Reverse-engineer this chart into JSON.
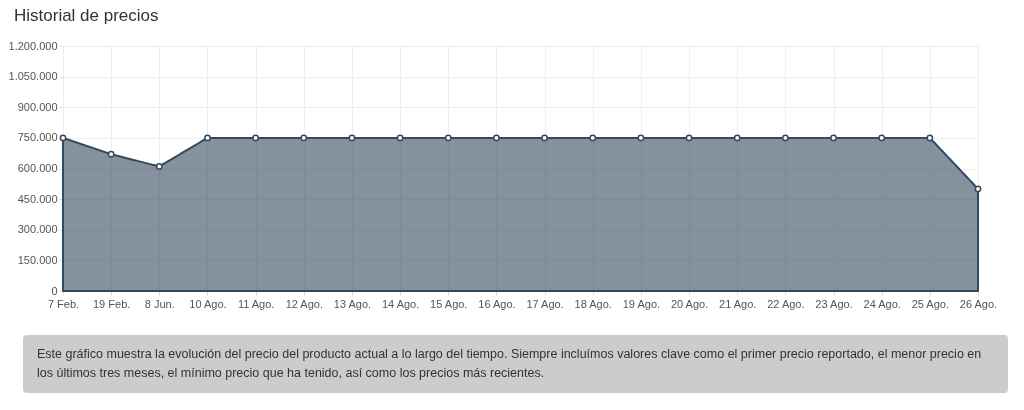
{
  "chart_data": {
    "type": "area",
    "title": "Historial de precios",
    "categories": [
      "7 Feb.",
      "19 Feb.",
      "8 Jun.",
      "10 Ago.",
      "11 Ago.",
      "12 Ago.",
      "13 Ago.",
      "14 Ago.",
      "15 Ago.",
      "16 Ago.",
      "17 Ago.",
      "18 Ago.",
      "19 Ago.",
      "20 Ago.",
      "21 Ago.",
      "22 Ago.",
      "23 Ago.",
      "24 Ago.",
      "25 Ago.",
      "26 Ago."
    ],
    "series": [
      {
        "color": "#34495e",
        "values": [
          750000,
          670000,
          610000,
          750000,
          750000,
          750000,
          750000,
          750000,
          750000,
          750000,
          750000,
          750000,
          750000,
          750000,
          750000,
          750000,
          750000,
          750000,
          750000,
          500000
        ]
      }
    ],
    "ylim": [
      0,
      1200000
    ],
    "yticks": [
      {
        "value": 0,
        "label": "0"
      },
      {
        "value": 150000,
        "label": "150.000"
      },
      {
        "value": 300000,
        "label": "300.000"
      },
      {
        "value": 450000,
        "label": "450.000"
      },
      {
        "value": 600000,
        "label": "600.000"
      },
      {
        "value": 750000,
        "label": "750.000"
      },
      {
        "value": 900000,
        "label": "900.000"
      },
      {
        "value": 1050000,
        "label": "1.050.000"
      },
      {
        "value": 1200000,
        "label": "1.200.000"
      }
    ],
    "grid": true,
    "marker": "circle",
    "annotations": [
      "Este gráfico muestra la evolución del precio del producto actual a lo largo del tiempo. Siempre incluímos valores clave como el primer precio reportado, el menor precio en los últimos tres meses, el mínimo precio que ha tenido, así como los precios más recientes."
    ]
  }
}
